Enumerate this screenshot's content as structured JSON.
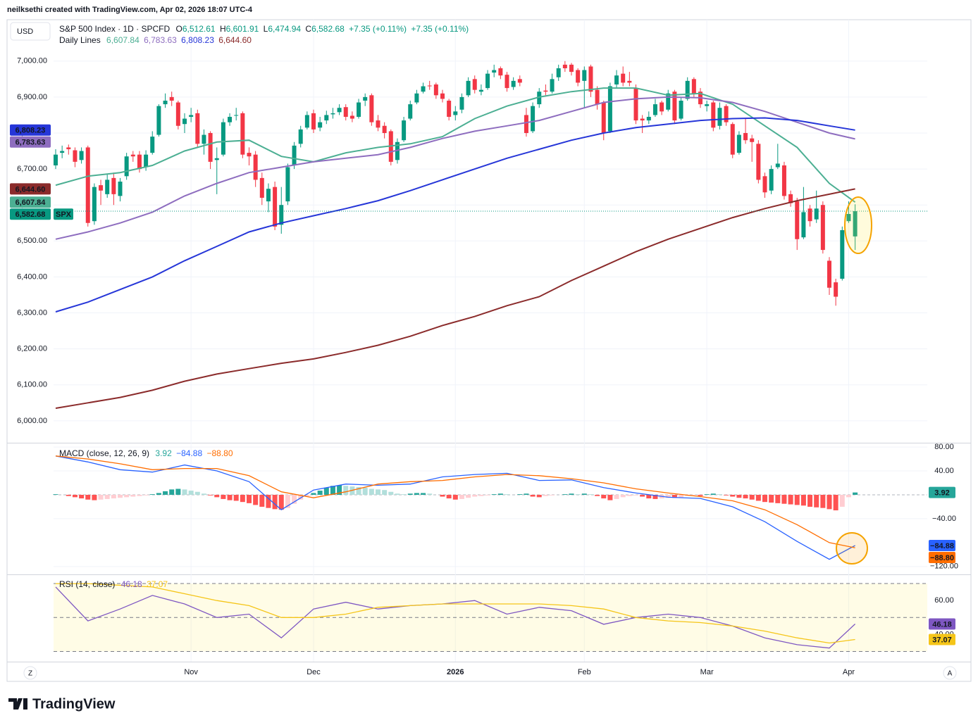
{
  "header": {
    "author": "neilksethi created with TradingView.com, Apr 02, 2026 18:07 UTC-4",
    "currency": "USD",
    "controls": [
      "Z",
      "A"
    ],
    "footer": "TradingView"
  },
  "chart_data": [
    {
      "type": "candlestick",
      "title": "S&P 500 Index · 1D · SPCFD",
      "symbol": "SPX",
      "quote": [
        {
          "key": "O",
          "value": 6512.61,
          "label": "6,512.61"
        },
        {
          "key": "H",
          "value": 6601.91,
          "label": "6,601.91"
        },
        {
          "key": "L",
          "value": 6474.94,
          "label": "6,474.94"
        },
        {
          "key": "C",
          "value": 6582.68,
          "label": "6,582.68"
        }
      ],
      "change": [
        "+7.35 (+0.11%)",
        "+7.35 (+0.11%)"
      ],
      "close_label": "6,582.68",
      "up_color": "#089981",
      "down_color": "#f23645",
      "categories": [
        null,
        null,
        null,
        null,
        null,
        null,
        null,
        null,
        null,
        null,
        null,
        null,
        null,
        null,
        null,
        null,
        null,
        null,
        null,
        null,
        null,
        "Nov",
        null,
        null,
        null,
        null,
        null,
        null,
        null,
        null,
        null,
        null,
        null,
        null,
        null,
        null,
        null,
        null,
        null,
        null,
        "Dec",
        null,
        null,
        null,
        null,
        null,
        null,
        null,
        null,
        null,
        null,
        null,
        null,
        null,
        null,
        null,
        null,
        null,
        null,
        null,
        null,
        null,
        "2026",
        null,
        null,
        null,
        null,
        null,
        null,
        null,
        null,
        null,
        null,
        null,
        null,
        null,
        null,
        null,
        null,
        null,
        null,
        null,
        "Feb",
        null,
        null,
        null,
        null,
        null,
        null,
        null,
        null,
        null,
        null,
        null,
        null,
        null,
        null,
        null,
        null,
        null,
        null,
        "Mar",
        null,
        null,
        null,
        null,
        null,
        null,
        null,
        null,
        null,
        null,
        null,
        null,
        null,
        null,
        null,
        null,
        null,
        null,
        null,
        null,
        null,
        "Apr",
        null
      ],
      "open": [
        6710,
        6745,
        6760,
        6752,
        6725,
        6760,
        6555,
        6655,
        6630,
        6675,
        6625,
        6680,
        6740,
        6740,
        6705,
        6745,
        6795,
        6880,
        6900,
        6885,
        6825,
        6845,
        6855,
        6770,
        6800,
        6725,
        6740,
        6830,
        6848,
        6855,
        6745,
        6740,
        6675,
        6610,
        6650,
        6545,
        6610,
        6710,
        6770,
        6815,
        6855,
        6815,
        6835,
        6852,
        6858,
        6872,
        6848,
        6845,
        6890,
        6905,
        6835,
        6820,
        6805,
        6725,
        6780,
        6840,
        6885,
        6915,
        6932,
        6935,
        6910,
        6890,
        6850,
        6865,
        6905,
        6950,
        6915,
        6925,
        6968,
        6980,
        6962,
        6928,
        6950,
        6850,
        6805,
        6880,
        6918,
        6915,
        6955,
        6990,
        6990,
        6975,
        6945,
        6985,
        6920,
        6885,
        6805,
        6935,
        6965,
        6945,
        6925,
        6840,
        6835,
        6850,
        6885,
        6865,
        6915,
        6840,
        6895,
        6950,
        6915,
        6875,
        6885,
        6820,
        6875,
        6825,
        6745,
        6800,
        6785,
        6770,
        6680,
        6640,
        6705,
        6710,
        6630,
        6610,
        6510,
        6590,
        6560,
        6600,
        6445,
        6385,
        6395,
        6555,
        6512.61
      ],
      "high": [
        6755,
        6765,
        6768,
        6760,
        6760,
        6765,
        6660,
        6670,
        6685,
        6690,
        6675,
        6745,
        6750,
        6750,
        6752,
        6805,
        6880,
        6910,
        6915,
        6890,
        6855,
        6870,
        6865,
        6810,
        6805,
        6760,
        6840,
        6855,
        6870,
        6860,
        6760,
        6750,
        6690,
        6660,
        6665,
        6650,
        6715,
        6775,
        6820,
        6860,
        6865,
        6845,
        6862,
        6870,
        6880,
        6880,
        6860,
        6895,
        6910,
        6910,
        6850,
        6830,
        6810,
        6785,
        6845,
        6890,
        6920,
        6940,
        6945,
        6940,
        6920,
        6895,
        6875,
        6910,
        6955,
        6960,
        6935,
        6975,
        6990,
        6985,
        6970,
        6955,
        6960,
        6870,
        6885,
        6925,
        6935,
        6965,
        6990,
        7000,
        6995,
        6980,
        6985,
        6990,
        6930,
        6890,
        6940,
        6975,
        6985,
        6970,
        6935,
        6850,
        6860,
        6895,
        6890,
        6920,
        6920,
        6900,
        6955,
        6955,
        6925,
        6890,
        6890,
        6885,
        6880,
        6830,
        6805,
        6840,
        6795,
        6780,
        6690,
        6710,
        6770,
        6720,
        6640,
        6620,
        6650,
        6600,
        6640,
        6610,
        6455,
        6395,
        6540,
        6610,
        6601.91
      ],
      "low": [
        6700,
        6730,
        6740,
        6705,
        6715,
        6540,
        6545,
        6600,
        6620,
        6600,
        6610,
        6670,
        6720,
        6690,
        6695,
        6740,
        6790,
        6870,
        6875,
        6810,
        6800,
        6830,
        6760,
        6740,
        6700,
        6630,
        6735,
        6820,
        6835,
        6730,
        6710,
        6650,
        6600,
        6580,
        6530,
        6520,
        6600,
        6700,
        6760,
        6810,
        6800,
        6805,
        6825,
        6840,
        6850,
        6835,
        6830,
        6840,
        6875,
        6820,
        6805,
        6785,
        6710,
        6715,
        6775,
        6835,
        6880,
        6910,
        6920,
        6895,
        6885,
        6835,
        6835,
        6855,
        6900,
        6910,
        6905,
        6920,
        6955,
        6950,
        6915,
        6920,
        6930,
        6790,
        6800,
        6870,
        6905,
        6910,
        6945,
        6970,
        6960,
        6930,
        6870,
        6900,
        6865,
        6780,
        6800,
        6925,
        6930,
        6930,
        6825,
        6800,
        6825,
        6845,
        6850,
        6860,
        6825,
        6835,
        6890,
        6900,
        6870,
        6860,
        6805,
        6810,
        6820,
        6730,
        6740,
        6770,
        6720,
        6660,
        6620,
        6630,
        6700,
        6615,
        6595,
        6475,
        6505,
        6540,
        6550,
        6465,
        6350,
        6320,
        6390,
        6550,
        6474.94
      ],
      "close": [
        6740,
        6750,
        6755,
        6720,
        6750,
        6550,
        6650,
        6640,
        6670,
        6630,
        6665,
        6735,
        6735,
        6700,
        6740,
        6790,
        6875,
        6890,
        6890,
        6820,
        6840,
        6850,
        6770,
        6795,
        6720,
        6730,
        6830,
        6845,
        6850,
        6740,
        6735,
        6670,
        6620,
        6645,
        6540,
        6600,
        6705,
        6765,
        6810,
        6850,
        6810,
        6830,
        6850,
        6855,
        6870,
        6845,
        6840,
        6885,
        6900,
        6830,
        6815,
        6800,
        6720,
        6775,
        6835,
        6880,
        6910,
        6930,
        6930,
        6905,
        6895,
        6845,
        6860,
        6900,
        6945,
        6920,
        6920,
        6965,
        6975,
        6960,
        6925,
        6945,
        6940,
        6800,
        6875,
        6915,
        6915,
        6950,
        6980,
        6980,
        6970,
        6940,
        6975,
        6915,
        6880,
        6800,
        6930,
        6960,
        6940,
        6940,
        6835,
        6835,
        6845,
        6880,
        6860,
        6910,
        6835,
        6890,
        6945,
        6910,
        6880,
        6880,
        6815,
        6870,
        6830,
        6740,
        6795,
        6780,
        6775,
        6670,
        6635,
        6700,
        6715,
        6625,
        6605,
        6505,
        6580,
        6555,
        6590,
        6475,
        6370,
        6345,
        6530,
        6575,
        6582.68
      ],
      "overlays": {
        "title": "Daily Lines",
        "x": [
          0,
          5,
          10,
          15,
          20,
          25,
          30,
          35,
          40,
          45,
          50,
          55,
          60,
          65,
          70,
          75,
          80,
          85,
          90,
          95,
          100,
          105,
          110,
          115,
          120,
          124
        ],
        "series": [
          {
            "color": "#4caf93",
            "values": [
              6655,
              6680,
              6690,
              6710,
              6750,
              6775,
              6780,
              6735,
              6720,
              6745,
              6760,
              6770,
              6790,
              6840,
              6875,
              6900,
              6915,
              6925,
              6925,
              6905,
              6910,
              6880,
              6820,
              6760,
              6660,
              6607.84
            ],
            "last": {
              "value": 6607.84,
              "label": "6,607.84"
            }
          },
          {
            "color": "#8e6dbf",
            "values": [
              6505,
              6525,
              6550,
              6580,
              6625,
              6660,
              6690,
              6705,
              6720,
              6730,
              6740,
              6760,
              6785,
              6805,
              6820,
              6835,
              6860,
              6885,
              6895,
              6900,
              6898,
              6885,
              6860,
              6830,
              6800,
              6783.63
            ],
            "last": {
              "value": 6783.63,
              "label": "6,783.63"
            }
          },
          {
            "color": "#2636d8",
            "values": [
              6303,
              6330,
              6365,
              6400,
              6445,
              6485,
              6525,
              6550,
              6570,
              6590,
              6612,
              6640,
              6670,
              6700,
              6730,
              6755,
              6780,
              6800,
              6815,
              6825,
              6835,
              6840,
              6842,
              6835,
              6820,
              6808.23
            ],
            "last": {
              "value": 6808.23,
              "label": "6,808.23"
            }
          },
          {
            "color": "#8b2b2b",
            "values": [
              6035,
              6050,
              6065,
              6085,
              6110,
              6130,
              6145,
              6160,
              6172,
              6190,
              6210,
              6235,
              6265,
              6290,
              6320,
              6345,
              6390,
              6430,
              6470,
              6505,
              6535,
              6565,
              6590,
              6612,
              6630,
              6644.6
            ],
            "last": {
              "value": 6644.6,
              "label": "6,644.60"
            }
          }
        ]
      },
      "ylim": [
        5941,
        7115
      ],
      "yticks": [
        {
          "value": 6000,
          "label": "6,000.00"
        },
        {
          "value": 6100,
          "label": "6,100.00"
        },
        {
          "value": 6200,
          "label": "6,200.00"
        },
        {
          "value": 6300,
          "label": "6,300.00"
        },
        {
          "value": 6400,
          "label": "6,400.00"
        },
        {
          "value": 6500,
          "label": "6,500.00"
        },
        {
          "value": 6600,
          "label": "6,600.00"
        },
        {
          "value": 6700,
          "label": "6,700.00"
        },
        {
          "value": 6800,
          "label": "6,800.00"
        },
        {
          "value": 6900,
          "label": "6,900.00"
        },
        {
          "value": 7000,
          "label": "7,000.00"
        }
      ],
      "grid": true
    },
    {
      "type": "macd",
      "title": "MACD (close, 12, 26, 9)",
      "histogram": {
        "values": [
          1,
          0,
          -2,
          -4,
          -6,
          -8,
          -9,
          -8,
          -7,
          -6,
          -5,
          -4,
          -3,
          -2,
          -1,
          1,
          3,
          6,
          9,
          10,
          9,
          7,
          5,
          2,
          -1,
          -4,
          -7,
          -9,
          -10,
          -12,
          -14,
          -17,
          -20,
          -22,
          -24,
          -25,
          -22,
          -15,
          -8,
          -2,
          3,
          7,
          12,
          15,
          16,
          15,
          14,
          13,
          12,
          10,
          9,
          8,
          5,
          2,
          1,
          2,
          3,
          3,
          2,
          0,
          -3,
          -6,
          -8,
          -7,
          -5,
          -3,
          -2,
          -1,
          1,
          2,
          1,
          0,
          1,
          2,
          -3,
          -4,
          -2,
          -1,
          0,
          1,
          2,
          1,
          2,
          1,
          -2,
          -6,
          -9,
          -7,
          -4,
          -2,
          -1,
          -3,
          -6,
          -7,
          -6,
          -5,
          -5,
          -4,
          -2,
          -1,
          -2,
          1,
          2,
          1,
          -1,
          -3,
          -5,
          -6,
          -8,
          -10,
          -12,
          -13,
          -14,
          -15,
          -16,
          -17,
          -18,
          -20,
          -21,
          -22,
          -24,
          -26,
          -20,
          -4,
          3.92
        ],
        "colors": [
          "#26a69a",
          "#b2dfdb",
          "#ff5252",
          "#ffcdd2"
        ]
      },
      "x": [
        0,
        5,
        10,
        15,
        20,
        25,
        30,
        35,
        40,
        45,
        50,
        55,
        60,
        65,
        70,
        75,
        80,
        85,
        90,
        95,
        100,
        105,
        110,
        115,
        120,
        124
      ],
      "series": [
        {
          "color": "#2962ff",
          "values": [
            65,
            55,
            42,
            38,
            50,
            40,
            22,
            -25,
            8,
            18,
            16,
            18,
            30,
            34,
            36,
            24,
            25,
            12,
            3,
            -4,
            -6,
            -20,
            -45,
            -78,
            -108,
            -84.88
          ],
          "last": {
            "value": -84.88,
            "label": "−84.88"
          }
        },
        {
          "color": "#ff6d00",
          "values": [
            65,
            60,
            52,
            42,
            44,
            44,
            32,
            5,
            -5,
            5,
            18,
            22,
            24,
            30,
            34,
            32,
            27,
            20,
            10,
            3,
            -3,
            -10,
            -25,
            -50,
            -80,
            -88.8
          ],
          "last": {
            "value": -88.8,
            "label": "−88.80"
          }
        }
      ],
      "ylim": [
        -132,
        86
      ],
      "yticks": [
        {
          "value": 80,
          "label": "80.00"
        },
        {
          "value": 40,
          "label": "40.00"
        },
        {
          "value": -40,
          "label": "−40.00"
        },
        {
          "value": -120,
          "label": "−120.00"
        }
      ]
    },
    {
      "type": "rsi",
      "title": "RSI (14, close)",
      "x": [
        0,
        5,
        10,
        15,
        20,
        25,
        30,
        35,
        40,
        45,
        50,
        55,
        60,
        65,
        70,
        75,
        80,
        85,
        90,
        95,
        100,
        105,
        110,
        115,
        120,
        124
      ],
      "series": [
        {
          "color": "#7e57c2",
          "values": [
            68,
            48,
            55,
            63,
            58,
            50,
            52,
            38,
            55,
            59,
            55,
            57,
            58,
            60,
            52,
            56,
            54,
            46,
            50,
            52,
            50,
            45,
            38,
            34,
            32,
            46.18
          ]
        },
        {
          "color": "#f5c518",
          "values": [
            70,
            70,
            69,
            68,
            64,
            60,
            57,
            50,
            50,
            52,
            56,
            57,
            58,
            58,
            58,
            58,
            57,
            55,
            50,
            48,
            47,
            45,
            42,
            38,
            35,
            37.07
          ]
        }
      ],
      "levels": [
        70,
        50,
        30
      ],
      "band": [
        30,
        70
      ],
      "ylim": [
        24,
        75
      ],
      "yticks": [
        {
          "value": 60,
          "label": "60.00"
        },
        {
          "value": 40,
          "label": "40.00"
        }
      ]
    }
  ]
}
